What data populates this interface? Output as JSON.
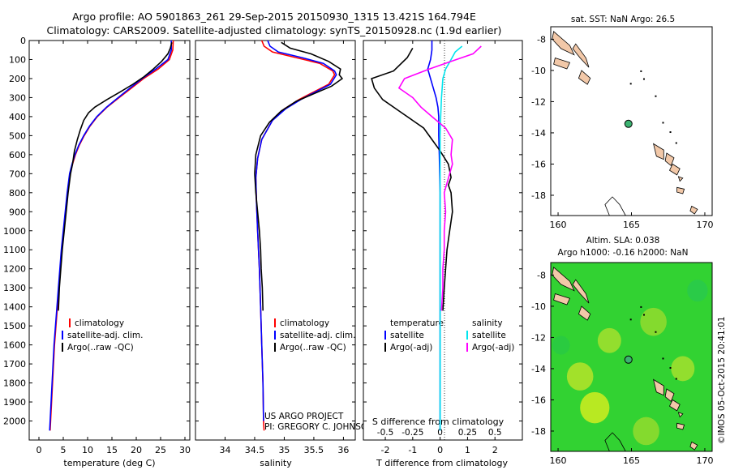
{
  "header": {
    "line1": "Argo profile: AO 5901863_261 29-Sep-2015 20150930_1315 13.421S 164.794E",
    "line2": "Climatology: CARS2009. Satellite-adjusted climatology: synTS_20150928.nc (1.9d earlier)"
  },
  "colors": {
    "climatology": "#ff0000",
    "satellite": "#0000ff",
    "argo": "#000000",
    "sat_salinity": "#00e5ee",
    "argo_salinity_diff": "#ff00ff",
    "land": "#f2c8a8",
    "sla_field": "#32d232",
    "float_marker": "#3cb371"
  },
  "credits": {
    "project": "US ARGO PROJECT",
    "pi": "PI: GREGORY C. JOHNSON",
    "stamp": "©IMOS 05-Oct-2015 20:41:01"
  },
  "chart_data": [
    {
      "type": "line",
      "xlabel": "temperature (deg C)",
      "ylabel": "",
      "xlim": [
        -2,
        31
      ],
      "ylim": [
        2100,
        0
      ],
      "x_ticks": [
        "0",
        "5",
        "10",
        "15",
        "20",
        "25",
        "30"
      ],
      "y_ticks": [
        "0",
        "100",
        "200",
        "300",
        "400",
        "500",
        "600",
        "700",
        "800",
        "900",
        "1000",
        "1100",
        "1200",
        "1300",
        "1400",
        "1500",
        "1600",
        "1700",
        "1800",
        "1900",
        "2000"
      ],
      "legend": [
        "climatology",
        "satellite-adj. clim.",
        "Argo(..raw -QC)"
      ],
      "legend_placement": "lower-right",
      "series": [
        {
          "name": "climatology",
          "color": "#ff0000",
          "points": [
            [
              27.6,
              0
            ],
            [
              27.5,
              50
            ],
            [
              26.8,
              100
            ],
            [
              24.5,
              150
            ],
            [
              21.5,
              200
            ],
            [
              19.0,
              250
            ],
            [
              16.5,
              300
            ],
            [
              14.0,
              350
            ],
            [
              12.0,
              400
            ],
            [
              10.5,
              450
            ],
            [
              9.3,
              500
            ],
            [
              8.3,
              550
            ],
            [
              7.5,
              600
            ],
            [
              6.9,
              650
            ],
            [
              6.4,
              700
            ],
            [
              5.9,
              800
            ],
            [
              5.5,
              900
            ],
            [
              5.1,
              1000
            ],
            [
              4.7,
              1100
            ],
            [
              4.4,
              1200
            ],
            [
              4.1,
              1300
            ],
            [
              3.8,
              1400
            ],
            [
              3.5,
              1500
            ],
            [
              3.2,
              1600
            ],
            [
              3.0,
              1700
            ],
            [
              2.8,
              1800
            ],
            [
              2.6,
              1900
            ],
            [
              2.4,
              2000
            ],
            [
              2.3,
              2050
            ]
          ]
        },
        {
          "name": "satellite-adj. clim.",
          "color": "#0000ff",
          "points": [
            [
              27.2,
              0
            ],
            [
              27.2,
              50
            ],
            [
              26.5,
              100
            ],
            [
              24.0,
              150
            ],
            [
              21.2,
              200
            ],
            [
              18.7,
              250
            ],
            [
              16.3,
              300
            ],
            [
              13.9,
              350
            ],
            [
              11.9,
              400
            ],
            [
              10.4,
              450
            ],
            [
              9.2,
              500
            ],
            [
              8.2,
              550
            ],
            [
              7.4,
              600
            ],
            [
              6.8,
              650
            ],
            [
              6.3,
              700
            ],
            [
              5.8,
              800
            ],
            [
              5.4,
              900
            ],
            [
              5.0,
              1000
            ],
            [
              4.6,
              1100
            ],
            [
              4.3,
              1200
            ],
            [
              4.0,
              1300
            ],
            [
              3.7,
              1400
            ],
            [
              3.4,
              1500
            ],
            [
              3.1,
              1600
            ],
            [
              2.9,
              1700
            ],
            [
              2.7,
              1800
            ],
            [
              2.5,
              1900
            ],
            [
              2.3,
              2000
            ],
            [
              2.2,
              2050
            ]
          ]
        },
        {
          "name": "Argo(..raw -QC)",
          "color": "#000000",
          "points": [
            [
              27.3,
              10
            ],
            [
              27.0,
              40
            ],
            [
              26.5,
              70
            ],
            [
              25.2,
              110
            ],
            [
              23.5,
              150
            ],
            [
              21.6,
              190
            ],
            [
              19.3,
              230
            ],
            [
              16.7,
              270
            ],
            [
              14.0,
              310
            ],
            [
              11.5,
              350
            ],
            [
              10.2,
              380
            ],
            [
              9.2,
              420
            ],
            [
              8.5,
              470
            ],
            [
              7.9,
              520
            ],
            [
              7.3,
              580
            ],
            [
              6.9,
              650
            ],
            [
              6.5,
              700
            ],
            [
              6.0,
              800
            ],
            [
              5.6,
              900
            ],
            [
              5.2,
              1000
            ],
            [
              4.8,
              1100
            ],
            [
              4.5,
              1200
            ],
            [
              4.2,
              1300
            ],
            [
              4.0,
              1420
            ]
          ]
        }
      ]
    },
    {
      "type": "line",
      "xlabel": "salinity",
      "ylabel": "",
      "xlim": [
        33.5,
        36.2
      ],
      "ylim": [
        2100,
        0
      ],
      "x_ticks": [
        "34",
        "34.5",
        "35",
        "35.5",
        "36"
      ],
      "legend": [
        "climatology",
        "satellite-adj. clim.",
        "Argo(..raw -QC)"
      ],
      "legend_placement": "lower-right",
      "series": [
        {
          "name": "climatology",
          "color": "#ff0000",
          "points": [
            [
              34.62,
              0
            ],
            [
              34.66,
              30
            ],
            [
              34.8,
              60
            ],
            [
              35.2,
              90
            ],
            [
              35.6,
              120
            ],
            [
              35.82,
              160
            ],
            [
              35.85,
              180
            ],
            [
              35.75,
              230
            ],
            [
              35.5,
              270
            ],
            [
              35.25,
              310
            ],
            [
              35.0,
              360
            ],
            [
              34.8,
              420
            ],
            [
              34.62,
              520
            ],
            [
              34.55,
              620
            ],
            [
              34.52,
              720
            ],
            [
              34.53,
              850
            ],
            [
              34.55,
              1000
            ],
            [
              34.58,
              1200
            ],
            [
              34.6,
              1400
            ],
            [
              34.62,
              1600
            ],
            [
              34.64,
              1800
            ],
            [
              34.65,
              2000
            ],
            [
              34.66,
              2050
            ]
          ]
        },
        {
          "name": "satellite-adj. clim.",
          "color": "#0000ff",
          "points": [
            [
              34.72,
              0
            ],
            [
              34.76,
              30
            ],
            [
              34.9,
              60
            ],
            [
              35.3,
              90
            ],
            [
              35.66,
              120
            ],
            [
              35.85,
              160
            ],
            [
              35.88,
              180
            ],
            [
              35.78,
              230
            ],
            [
              35.53,
              270
            ],
            [
              35.28,
              310
            ],
            [
              35.02,
              360
            ],
            [
              34.8,
              420
            ],
            [
              34.62,
              520
            ],
            [
              34.55,
              620
            ],
            [
              34.52,
              720
            ],
            [
              34.53,
              850
            ],
            [
              34.55,
              1000
            ],
            [
              34.58,
              1200
            ],
            [
              34.6,
              1400
            ],
            [
              34.62,
              1600
            ],
            [
              34.64,
              1800
            ],
            [
              34.65,
              2000
            ]
          ]
        },
        {
          "name": "Argo(..raw -QC)",
          "color": "#000000",
          "points": [
            [
              34.95,
              10
            ],
            [
              35.1,
              40
            ],
            [
              35.45,
              70
            ],
            [
              35.75,
              110
            ],
            [
              35.95,
              150
            ],
            [
              35.93,
              180
            ],
            [
              35.98,
              200
            ],
            [
              35.8,
              240
            ],
            [
              35.5,
              280
            ],
            [
              35.2,
              320
            ],
            [
              34.95,
              370
            ],
            [
              34.75,
              430
            ],
            [
              34.6,
              500
            ],
            [
              34.52,
              600
            ],
            [
              34.5,
              700
            ],
            [
              34.52,
              800
            ],
            [
              34.55,
              900
            ],
            [
              34.58,
              1000
            ],
            [
              34.6,
              1100
            ],
            [
              34.61,
              1200
            ],
            [
              34.63,
              1300
            ],
            [
              34.64,
              1420
            ]
          ]
        }
      ]
    },
    {
      "type": "line",
      "xlabel": "T difference from climatology",
      "xlabel2": "S difference from climatology",
      "xlim": [
        -2.8,
        3.0
      ],
      "ylim": [
        2100,
        0
      ],
      "x_ticks": [
        "-2",
        "-1",
        "0",
        "1",
        "2"
      ],
      "x2_ticks": [
        "-0.5",
        "-0.25",
        "0",
        "0.25",
        "0.5"
      ],
      "legend_left_title": "temperature",
      "legend_right_title": "salinity",
      "legend": [
        "satellite",
        "Argo(-adj)",
        "satellite",
        "Argo(-adj)"
      ],
      "legend_placement": "lower-right",
      "series": [
        {
          "name": "satellite",
          "color": "#0000ff",
          "points": [
            [
              -0.3,
              0
            ],
            [
              -0.3,
              50
            ],
            [
              -0.35,
              100
            ],
            [
              -0.45,
              150
            ],
            [
              -0.35,
              200
            ],
            [
              -0.25,
              250
            ],
            [
              -0.15,
              300
            ],
            [
              -0.08,
              350
            ],
            [
              -0.05,
              400
            ],
            [
              -0.05,
              500
            ],
            [
              -0.03,
              600
            ],
            [
              0,
              800
            ],
            [
              0,
              1000
            ],
            [
              0,
              1500
            ],
            [
              0,
              2050
            ]
          ]
        },
        {
          "name": "Argo(-adj)",
          "color": "#000000",
          "points": [
            [
              -1.0,
              40
            ],
            [
              -1.2,
              90
            ],
            [
              -1.7,
              160
            ],
            [
              -2.5,
              200
            ],
            [
              -2.4,
              250
            ],
            [
              -2.1,
              310
            ],
            [
              -1.5,
              370
            ],
            [
              -1.0,
              420
            ],
            [
              -0.6,
              460
            ],
            [
              -0.3,
              520
            ],
            [
              0,
              580
            ],
            [
              0.3,
              650
            ],
            [
              0.4,
              720
            ],
            [
              0.3,
              760
            ],
            [
              0.4,
              800
            ],
            [
              0.45,
              900
            ],
            [
              0.35,
              1000
            ],
            [
              0.25,
              1100
            ],
            [
              0.2,
              1200
            ],
            [
              0.15,
              1300
            ],
            [
              0.1,
              1420
            ]
          ]
        },
        {
          "name": "satellite",
          "color": "#00e5ee",
          "points": [
            [
              0.8,
              30
            ],
            [
              0.55,
              60
            ],
            [
              0.4,
              100
            ],
            [
              0.2,
              150
            ],
            [
              0.1,
              200
            ],
            [
              0.05,
              300
            ],
            [
              0.02,
              400
            ],
            [
              0,
              500
            ],
            [
              0,
              800
            ],
            [
              0,
              1200
            ],
            [
              0,
              2050
            ]
          ]
        },
        {
          "name": "Argo(-adj)",
          "color": "#ff00ff",
          "points": [
            [
              1.5,
              30
            ],
            [
              1.2,
              70
            ],
            [
              0.4,
              110
            ],
            [
              -0.4,
              150
            ],
            [
              -1.3,
              200
            ],
            [
              -1.5,
              250
            ],
            [
              -1.0,
              300
            ],
            [
              -0.7,
              350
            ],
            [
              -0.3,
              400
            ],
            [
              0.2,
              460
            ],
            [
              0.45,
              520
            ],
            [
              0.4,
              600
            ],
            [
              0.45,
              650
            ],
            [
              0.35,
              700
            ],
            [
              0.15,
              800
            ],
            [
              0.2,
              900
            ],
            [
              0.15,
              1000
            ],
            [
              0.15,
              1100
            ],
            [
              0.1,
              1200
            ],
            [
              0.1,
              1300
            ],
            [
              0.05,
              1420
            ]
          ]
        }
      ]
    },
    {
      "type": "map",
      "title": "sat. SST: NaN Argo: 26.5",
      "xlim": [
        159.5,
        170.5
      ],
      "ylim": [
        -19.3,
        -7.2
      ],
      "x_ticks": [
        "160",
        "165",
        "170"
      ],
      "y_ticks": [
        "-8",
        "-10",
        "-12",
        "-14",
        "-16",
        "-18"
      ],
      "float_position": [
        164.794,
        -13.421
      ]
    },
    {
      "type": "heatmap",
      "title_line1": "Altim. SLA: 0.038",
      "title_line2": "Argo h1000: -0.16 h2000: NaN",
      "xlim": [
        159.5,
        170.5
      ],
      "ylim": [
        -19.3,
        -7.2
      ],
      "x_ticks": [
        "160",
        "165",
        "170"
      ],
      "y_ticks": [
        "-8",
        "-10",
        "-12",
        "-14",
        "-16",
        "-18"
      ],
      "float_position": [
        164.794,
        -13.421
      ]
    }
  ]
}
